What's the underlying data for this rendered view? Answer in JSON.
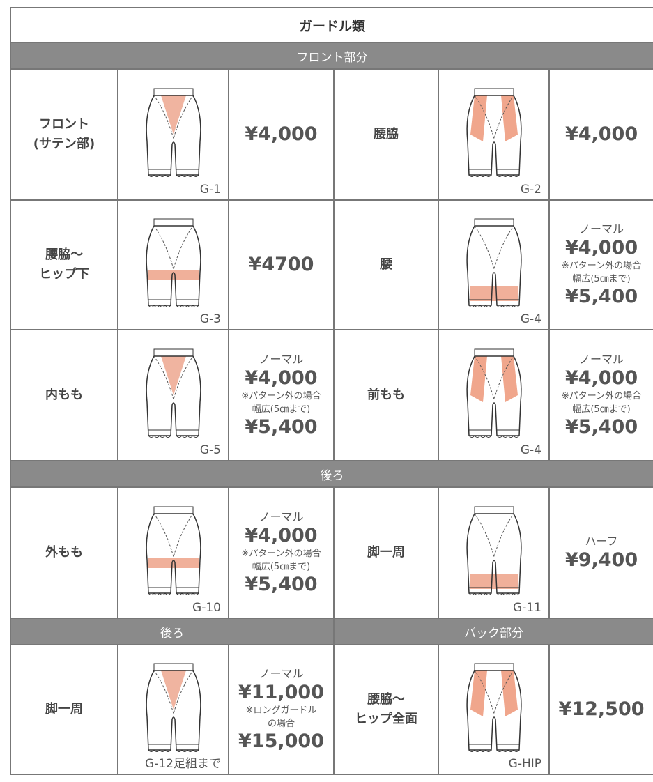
{
  "table": {
    "title": "ガードル類",
    "rows": [
      {
        "headers": [
          "フロント部分"
        ]
      },
      {
        "items": [
          {
            "label": [
              "フロント",
              "(サテン部)"
            ],
            "code": "G-1",
            "price": {
              "main": "¥4,000"
            }
          },
          {
            "label": [
              "腰脇"
            ],
            "code": "G-2",
            "price": {
              "main": "¥4,000"
            }
          }
        ]
      },
      {
        "items": [
          {
            "label": [
              "腰脇～",
              "ヒップ下"
            ],
            "code": "G-3",
            "price": {
              "main": "¥4700"
            }
          },
          {
            "label": [
              "腰"
            ],
            "code": "G-4",
            "price": {
              "note": "ノーマル",
              "main": "¥4,000",
              "cond": "※パターン外の場合",
              "cond2": "幅広(5㎝まで)",
              "alt": "¥5,400"
            }
          }
        ]
      },
      {
        "items": [
          {
            "label": [
              "内もも"
            ],
            "code": "G-5",
            "price": {
              "note": "ノーマル",
              "main": "¥4,000",
              "cond": "※パターン外の場合",
              "cond2": "幅広(5㎝まで)",
              "alt": "¥5,400"
            }
          },
          {
            "label": [
              "前もも"
            ],
            "code": "G-4",
            "price": {
              "note": "ノーマル",
              "main": "¥4,000",
              "cond": "※パターン外の場合",
              "cond2": "幅広(5㎝まで)",
              "alt": "¥5,400"
            }
          }
        ]
      },
      {
        "headers": [
          "後ろ"
        ]
      },
      {
        "items": [
          {
            "label": [
              "外もも"
            ],
            "code": "G-10",
            "price": {
              "note": "ノーマル",
              "main": "¥4,000",
              "cond": "※パターン外の場合",
              "cond2": "幅広(5㎝まで)",
              "alt": "¥5,400"
            }
          },
          {
            "label": [
              "脚一周"
            ],
            "code": "G-11",
            "price": {
              "note": "ハーフ",
              "main": "¥9,400"
            }
          }
        ]
      },
      {
        "headers": [
          "後ろ",
          "バック部分"
        ]
      },
      {
        "items": [
          {
            "label": [
              "脚一周"
            ],
            "code": "G-12足組まで",
            "price": {
              "note": "ノーマル",
              "main": "¥11,000",
              "cond": "※ロングガードル",
              "cond2": "の場合",
              "alt": "¥15,000"
            }
          },
          {
            "label": [
              "腰脇～",
              "ヒップ全面"
            ],
            "code": "G-HIP",
            "price": {
              "main": "¥12,500"
            }
          }
        ]
      }
    ]
  }
}
